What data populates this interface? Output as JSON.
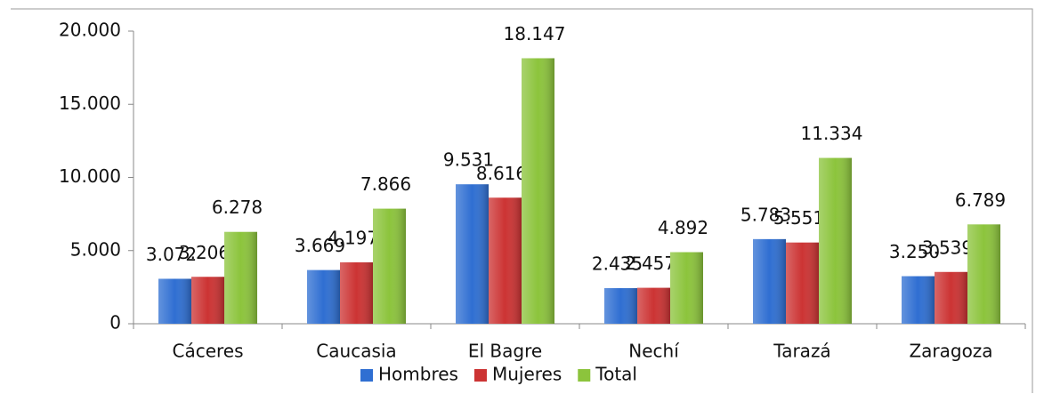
{
  "chart_data": {
    "type": "bar",
    "categories": [
      "Cáceres",
      "Caucasia",
      "El Bagre",
      "Nechí",
      "Tarazá",
      "Zaragoza"
    ],
    "series": [
      {
        "name": "Hombres",
        "color": "#2f6fd2",
        "values": [
          3072,
          3669,
          9531,
          2435,
          5783,
          3250
        ],
        "value_labels": [
          "3.072",
          "3.669",
          "9.531",
          "2.435",
          "5.783",
          "3.250"
        ]
      },
      {
        "name": "Mujeres",
        "color": "#cc3333",
        "values": [
          3206,
          4197,
          8616,
          2457,
          5551,
          3539
        ],
        "value_labels": [
          "3.206",
          "4.197",
          "8.616",
          "2.457",
          "5.551",
          "3.539"
        ]
      },
      {
        "name": "Total",
        "color": "#8cc43c",
        "values": [
          6278,
          7866,
          18147,
          4892,
          11334,
          6789
        ],
        "value_labels": [
          "6.278",
          "7.866",
          "18.147",
          "4.892",
          "11.334",
          "6.789"
        ]
      }
    ],
    "ylim": [
      0,
      20000
    ],
    "yticks": [
      0,
      {
        "value": 5000,
        "label": "5.000"
      },
      {
        "value": 10000,
        "label": "10.000"
      },
      {
        "value": 15000,
        "label": "15.000"
      },
      {
        "value": 20000,
        "label": "20.000"
      }
    ],
    "legend": "bottom"
  }
}
